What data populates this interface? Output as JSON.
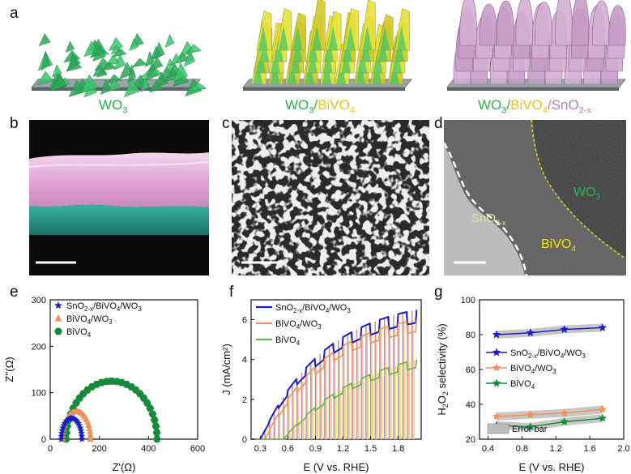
{
  "panels": {
    "a": "a",
    "b": "b",
    "c": "c",
    "d": "d",
    "e": "e",
    "f": "f",
    "g": "g"
  },
  "row_a": {
    "caption1": {
      "p1": "WO",
      "s1": "3"
    },
    "caption2": {
      "p1": "WO",
      "s1": "3",
      "slash": "/",
      "p2": "BiVO",
      "s2": "4"
    },
    "caption3": {
      "p1": "WO",
      "s1": "3",
      "slash1": "/",
      "p2": "BiVO",
      "s2": "4",
      "slash2": "/",
      "p3": "SnO",
      "s3": "2-x"
    }
  },
  "panel_d": {
    "wo3": {
      "p": "WO",
      "s": "3"
    },
    "sno2": {
      "p": "SnO",
      "s": "2-x"
    },
    "bivo4": {
      "p": "BiVO",
      "s": "4"
    }
  },
  "colors": {
    "wo3": "#2bb24c",
    "bivo4": "#e9c21a",
    "sno2": "#b87cb7",
    "blue": "#1a1fc4",
    "orange": "#f0905a",
    "green": "#158a3a"
  },
  "chart_data": [
    {
      "id": "e",
      "type": "scatter",
      "xlabel": "Z'(Ω)",
      "ylabel": "Z''(Ω)",
      "xlim": [
        0,
        600
      ],
      "ylim": [
        0,
        300
      ],
      "xticks": [
        "0",
        "200",
        "400",
        "600"
      ],
      "yticks": [
        "0",
        "100",
        "200",
        "300"
      ],
      "legend": [
        {
          "name": "SnO2-x/BiVO4/WO3",
          "label": {
            "a": "SnO",
            "a_sub": "2-x",
            "b": "/BiVO",
            "b_sub": "4",
            "c": "/WO",
            "c_sub": "3"
          },
          "marker": "star",
          "color": "#1a1fc4"
        },
        {
          "name": "BiVO4/WO3",
          "label": {
            "a": "BiVO",
            "a_sub": "4",
            "b": "/WO",
            "b_sub": "3"
          },
          "marker": "triangle",
          "color": "#f0905a"
        },
        {
          "name": "BiVO4",
          "label": {
            "a": "BiVO",
            "a_sub": "4"
          },
          "marker": "hexagon",
          "color": "#158a3a"
        }
      ],
      "series": [
        {
          "name": "BiVO4",
          "center": 250,
          "radius": 185,
          "amp": 125,
          "points": 28
        },
        {
          "name": "BiVO4/WO3",
          "center": 107,
          "radius": 57,
          "amp": 60,
          "points": 24
        },
        {
          "name": "SnO2-x/BiVO4/WO3",
          "center": 87,
          "radius": 42,
          "amp": 45,
          "points": 22
        }
      ]
    },
    {
      "id": "f",
      "type": "line",
      "xlabel": "E (V vs. RHE)",
      "ylabel": "J (mA/cm²)",
      "xlim": [
        0.2,
        2.05
      ],
      "ylim": [
        0,
        7
      ],
      "xticks": [
        "0.3",
        "0.6",
        "0.9",
        "1.2",
        "1.5",
        "1.8"
      ],
      "xtick_values": [
        0.3,
        0.6,
        0.9,
        1.2,
        1.5,
        1.8
      ],
      "yticks": [
        "0",
        "2",
        "4",
        "6"
      ],
      "ytick_values": [
        0,
        2,
        4,
        6
      ],
      "legend": [
        {
          "name": "SnO2-x/BiVO4/WO3",
          "label": {
            "a": "SnO",
            "a_sub": "2-x",
            "b": "/BiVO",
            "b_sub": "4",
            "c": "/WO",
            "c_sub": "3"
          },
          "color": "#1a1fc4"
        },
        {
          "name": "BiVO4/WO3",
          "label": {
            "a": "BiVO",
            "a_sub": "4",
            "b": "/WO",
            "b_sub": "3"
          },
          "color": "#f0905a"
        },
        {
          "name": "BiVO4",
          "label": {
            "a": "BiVO",
            "a_sub": "4"
          },
          "color": "#6ab04c"
        }
      ],
      "series": [
        {
          "name": "SnO2-x/BiVO4/WO3",
          "onset": 0.3,
          "jmax": 6.5,
          "k": 1.15
        },
        {
          "name": "BiVO4/WO3",
          "onset": 0.35,
          "jmax": 6.0,
          "k": 1.1
        },
        {
          "name": "BiVO4",
          "onset": 0.55,
          "jmax": 4.0,
          "k": 1.45
        }
      ]
    },
    {
      "id": "g",
      "type": "line",
      "xlabel": "E (V vs. RHE)",
      "ylabel": "H2O2 selectivity (%)",
      "ylabel_parts": {
        "a": "H",
        "a_sub": "2",
        "b": "O",
        "b_sub": "2",
        "c": " selectivity (%)"
      },
      "xlim": [
        0.3,
        2.0
      ],
      "ylim": [
        20,
        100
      ],
      "xticks": [
        "0.4",
        "0.8",
        "1.2",
        "1.6",
        "2.0"
      ],
      "xtick_values": [
        0.4,
        0.8,
        1.2,
        1.6,
        2.0
      ],
      "yticks": [
        "20",
        "40",
        "60",
        "80",
        "100"
      ],
      "ytick_values": [
        20,
        40,
        60,
        80,
        100
      ],
      "x": [
        0.5,
        0.9,
        1.3,
        1.75
      ],
      "legend": [
        {
          "name": "SnO2-x/BiVO4/WO3",
          "label": {
            "a": "SnO",
            "a_sub": "2-x",
            "b": "/BiVO",
            "b_sub": "4",
            "c": "/WO",
            "c_sub": "3"
          },
          "color": "#1a1fc4"
        },
        {
          "name": "BiVO4/WO3",
          "label": {
            "a": "BiVO",
            "a_sub": "4",
            "b": "/WO",
            "b_sub": "3"
          },
          "color": "#f0905a"
        },
        {
          "name": "BiVO4",
          "label": {
            "a": "BiVO",
            "a_sub": "4"
          },
          "color": "#158a3a"
        }
      ],
      "error_bar_label": "Error bar",
      "series": [
        {
          "name": "SnO2-x/BiVO4/WO3",
          "values": [
            80,
            81,
            83,
            84
          ],
          "err": 1.5
        },
        {
          "name": "BiVO4/WO3",
          "values": [
            33,
            34,
            35,
            37
          ],
          "err": 1.5
        },
        {
          "name": "BiVO4",
          "values": [
            28,
            27,
            30,
            32
          ],
          "err": 1.5
        }
      ]
    }
  ]
}
